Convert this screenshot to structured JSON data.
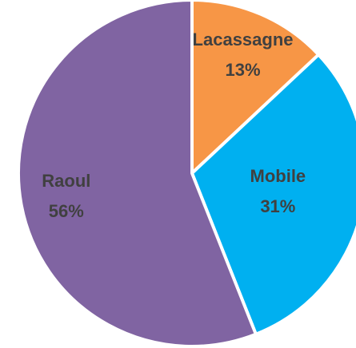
{
  "chart_data": {
    "type": "pie",
    "categories": [
      "Lacassagne",
      "Mobile",
      "Raoul"
    ],
    "values": [
      13,
      31,
      56
    ],
    "value_labels": [
      "13%",
      "31%",
      "56%"
    ],
    "colors": [
      "#F79646",
      "#00B0F0",
      "#8064A2"
    ]
  }
}
